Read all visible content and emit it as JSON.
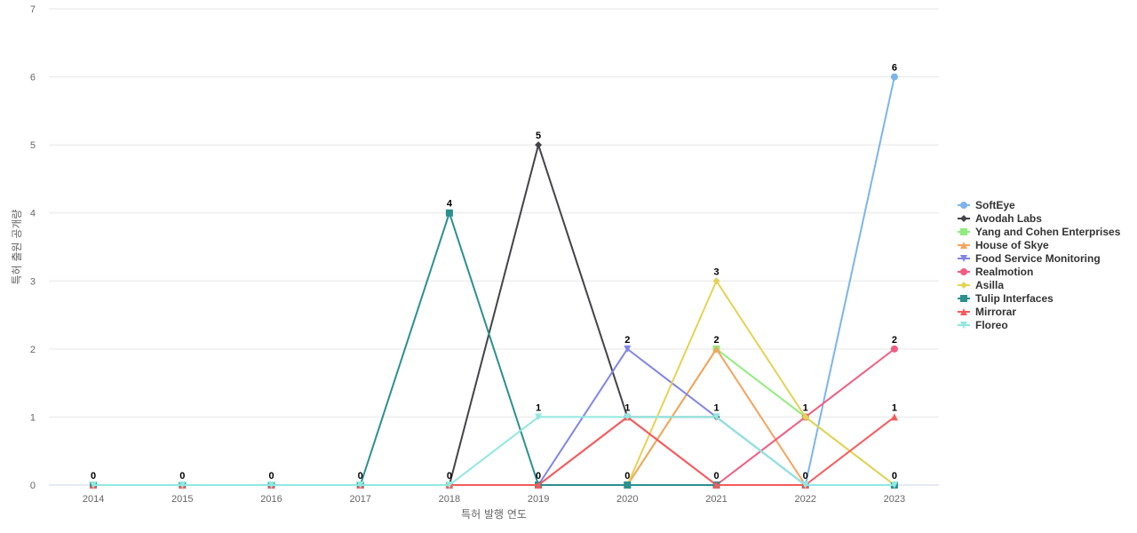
{
  "chart_data": {
    "type": "line",
    "xlabel": "특허 발행 연도",
    "ylabel": "특허 출원 공개량",
    "ylim": [
      0,
      7
    ],
    "yticks": [
      0,
      1,
      2,
      3,
      4,
      5,
      6,
      7
    ],
    "x": [
      "2014",
      "2015",
      "2016",
      "2017",
      "2018",
      "2019",
      "2020",
      "2021",
      "2022",
      "2023"
    ],
    "grid": "horizontal",
    "legend_position": "right",
    "series": [
      {
        "name": "SoftEye",
        "color": "#7cb5ec",
        "marker": "circle",
        "values": [
          0,
          0,
          0,
          0,
          0,
          0,
          0,
          0,
          0,
          6
        ]
      },
      {
        "name": "Avodah Labs",
        "color": "#434348",
        "marker": "diamond",
        "values": [
          0,
          0,
          0,
          0,
          0,
          5,
          1,
          1,
          0,
          0
        ]
      },
      {
        "name": "Yang and Cohen Enterprises",
        "color": "#90ed7d",
        "marker": "square",
        "values": [
          0,
          0,
          0,
          0,
          0,
          0,
          0,
          2,
          1,
          0
        ]
      },
      {
        "name": "House of Skye",
        "color": "#f7a35c",
        "marker": "triangle",
        "values": [
          0,
          0,
          0,
          0,
          0,
          0,
          0,
          2,
          0,
          0
        ]
      },
      {
        "name": "Food Service Monitoring",
        "color": "#8085e9",
        "marker": "triangle-down",
        "values": [
          0,
          0,
          0,
          0,
          0,
          0,
          2,
          1,
          0,
          0
        ]
      },
      {
        "name": "Realmotion",
        "color": "#f15c80",
        "marker": "circle",
        "values": [
          0,
          0,
          0,
          0,
          0,
          0,
          1,
          0,
          1,
          2
        ]
      },
      {
        "name": "Asilla",
        "color": "#e4d354",
        "marker": "diamond",
        "values": [
          0,
          0,
          0,
          0,
          0,
          0,
          0,
          3,
          1,
          0
        ]
      },
      {
        "name": "Tulip Interfaces",
        "color": "#2b908f",
        "marker": "square",
        "values": [
          0,
          0,
          0,
          0,
          4,
          0,
          0,
          0,
          0,
          0
        ]
      },
      {
        "name": "Mirrorar",
        "color": "#f45b5b",
        "marker": "triangle",
        "values": [
          0,
          0,
          0,
          0,
          0,
          0,
          1,
          0,
          0,
          1
        ]
      },
      {
        "name": "Floreo",
        "color": "#91e8e1",
        "marker": "triangle-down",
        "values": [
          0,
          0,
          0,
          0,
          0,
          1,
          1,
          1,
          0,
          0
        ]
      }
    ],
    "data_labels": [
      {
        "x": "2014",
        "value": 0
      },
      {
        "x": "2015",
        "value": 0
      },
      {
        "x": "2016",
        "value": 0
      },
      {
        "x": "2017",
        "value": 0
      },
      {
        "x": "2018",
        "value": 4
      },
      {
        "x": "2018",
        "value": 0
      },
      {
        "x": "2019",
        "value": 5
      },
      {
        "x": "2019",
        "value": 1
      },
      {
        "x": "2019",
        "value": 0
      },
      {
        "x": "2020",
        "value": 2
      },
      {
        "x": "2020",
        "value": 1
      },
      {
        "x": "2020",
        "value": 0
      },
      {
        "x": "2021",
        "value": 3
      },
      {
        "x": "2021",
        "value": 2
      },
      {
        "x": "2021",
        "value": 1
      },
      {
        "x": "2021",
        "value": 0
      },
      {
        "x": "2022",
        "value": 1
      },
      {
        "x": "2022",
        "value": 0
      },
      {
        "x": "2023",
        "value": 6
      },
      {
        "x": "2023",
        "value": 2
      },
      {
        "x": "2023",
        "value": 1
      },
      {
        "x": "2023",
        "value": 0
      }
    ]
  }
}
